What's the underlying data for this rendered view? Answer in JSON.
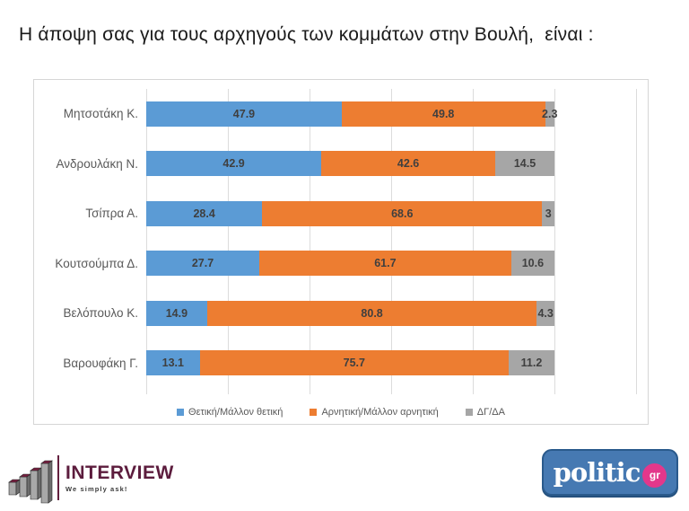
{
  "title": "Η άποψη σας για τους αρχηγούς των κομμάτων στην Βουλή,  είναι :",
  "chart_data": {
    "type": "bar",
    "orientation": "horizontal",
    "stacked": true,
    "title": "Η άποψη σας για τους αρχηγούς των κομμάτων στην Βουλή,  είναι :",
    "categories": [
      "Μητσοτάκη Κ.",
      "Ανδρουλάκη Ν.",
      "Τσίπρα Α.",
      "Κουτσούμπα Δ.",
      "Βελόπουλο Κ.",
      "Βαρουφάκη Γ."
    ],
    "series": [
      {
        "name": "Θετική/Μάλλον θετική",
        "color": "#5B9BD5",
        "values": [
          47.9,
          42.9,
          28.4,
          27.7,
          14.9,
          13.1
        ]
      },
      {
        "name": "Αρνητική/Μάλλον αρνητική",
        "color": "#ED7D31",
        "values": [
          49.8,
          42.6,
          68.6,
          61.7,
          80.8,
          75.7
        ]
      },
      {
        "name": "ΔΓ/ΔΑ",
        "color": "#A6A6A6",
        "values": [
          2.3,
          14.5,
          3,
          10.6,
          4.3,
          11.2
        ]
      }
    ],
    "xlabel": "",
    "ylabel": "",
    "xlim": [
      0,
      120
    ],
    "gridline_step": 20,
    "grid": true,
    "legend_position": "bottom",
    "data_label_color": "#3f3f3f",
    "gridline_color": "#dcdcdc"
  },
  "footer": {
    "interview_name": "INTERVIEW",
    "interview_tagline": "We simply ask!",
    "politic_name": "politic",
    "politic_badge": "gr"
  },
  "colors": {
    "positive": "#5B9BD5",
    "negative": "#ED7D31",
    "neutral": "#A6A6A6",
    "interview_maroon": "#5c1c3d",
    "politic_blue": "#4679b2",
    "politic_pink": "#e3378b"
  }
}
